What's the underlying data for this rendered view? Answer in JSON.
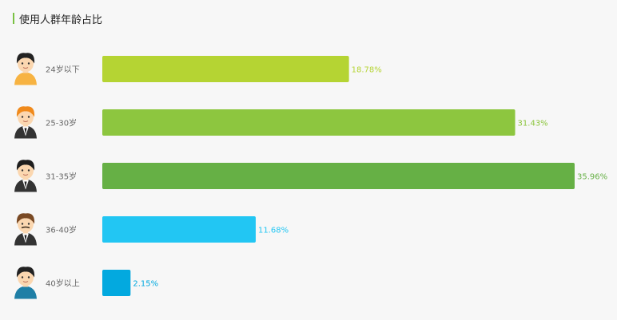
{
  "header": {
    "title": "使用人群年龄占比",
    "accent_color": "#7ac143"
  },
  "chart_data": {
    "type": "bar",
    "orientation": "horizontal",
    "title": "使用人群年龄占比",
    "categories": [
      "24岁以下",
      "25-30岁",
      "31-35岁",
      "36-40岁",
      "40岁以上"
    ],
    "values": [
      18.78,
      31.43,
      35.96,
      11.68,
      2.15
    ],
    "value_labels": [
      "18.78%",
      "31.43%",
      "35.96%",
      "11.68%",
      "2.15%"
    ],
    "colors": [
      "#b5d433",
      "#8dc63f",
      "#66b045",
      "#22c6f3",
      "#03a9df"
    ],
    "icons": [
      "boy-icon",
      "orange-hair-man-icon",
      "businessman-icon",
      "mustache-man-icon",
      "older-man-icon"
    ],
    "xlim": [
      0,
      35.96
    ],
    "grid": false,
    "legend": "none"
  }
}
